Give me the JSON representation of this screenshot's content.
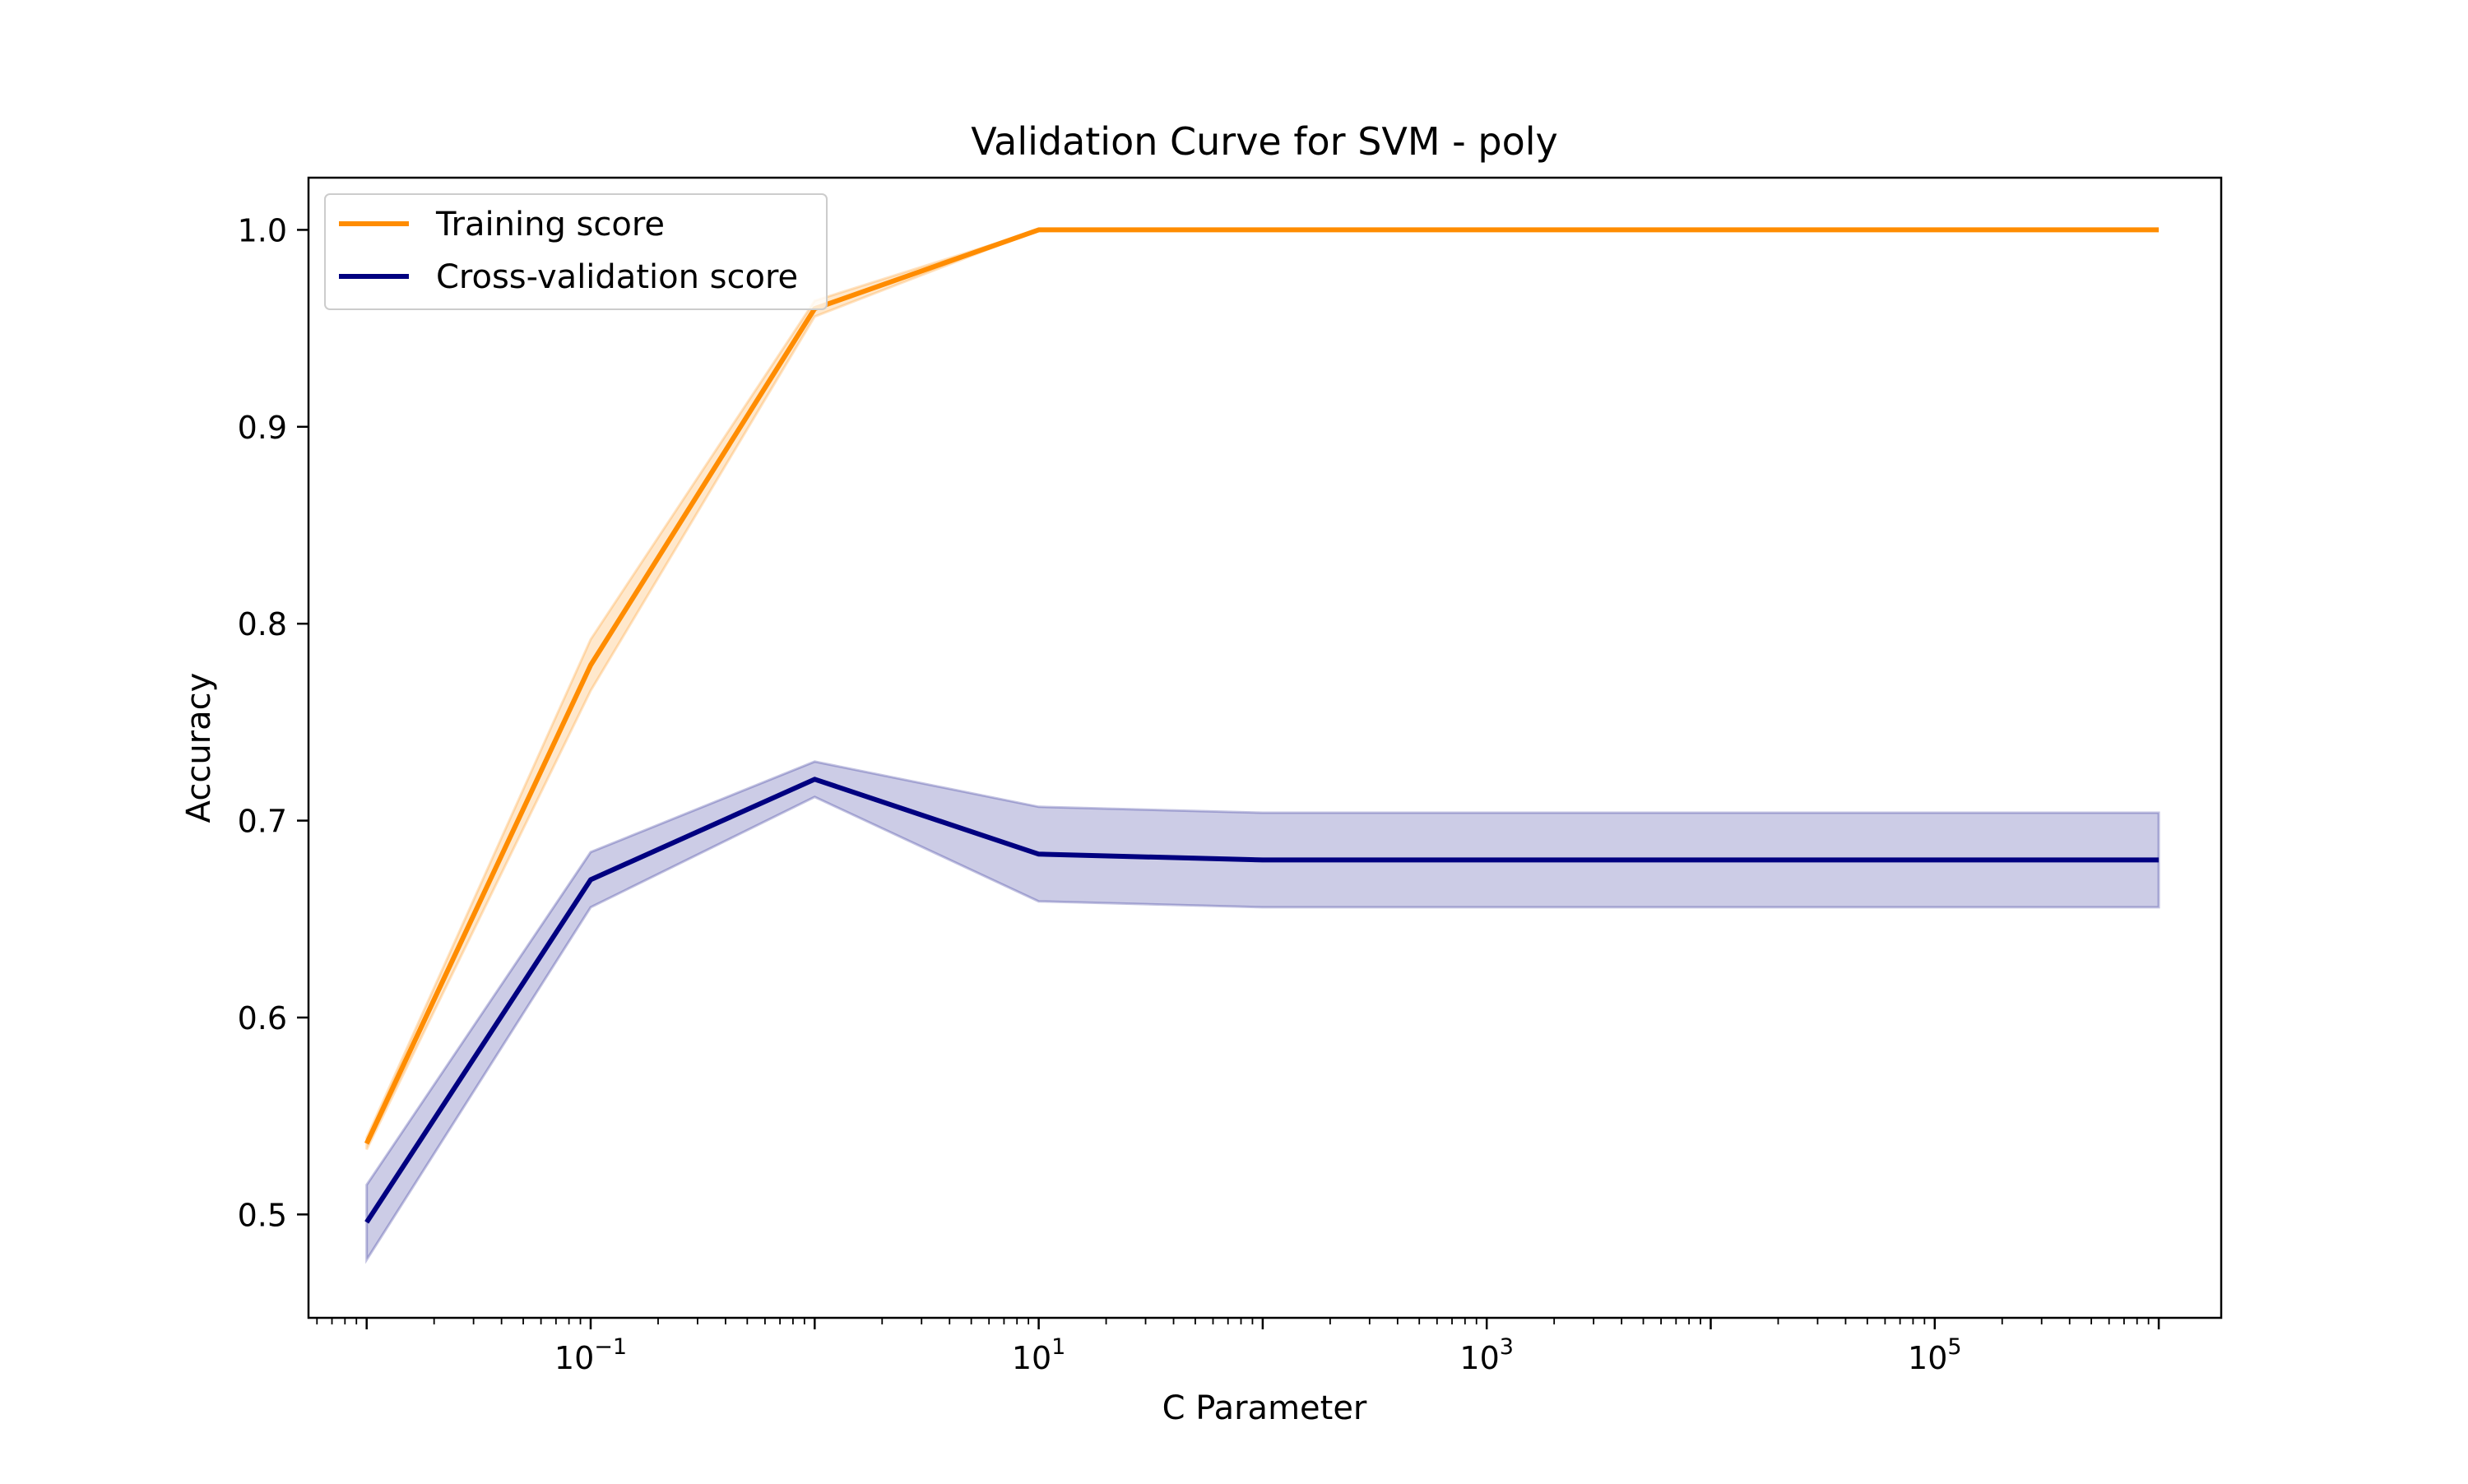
{
  "chart_data": {
    "type": "line",
    "title": "Validation Curve for SVM - poly",
    "xlabel": "C Parameter",
    "ylabel": "Accuracy",
    "xscale": "log",
    "xlim": [
      0.0055,
      1900000
    ],
    "ylim": [
      0.4475,
      1.0265
    ],
    "x": [
      0.01,
      0.1,
      1,
      10,
      100,
      1000,
      10000,
      100000,
      1000000
    ],
    "x_ticks": [
      {
        "value": 0.1,
        "base": "10",
        "exp": "−1"
      },
      {
        "value": 10,
        "base": "10",
        "exp": "1"
      },
      {
        "value": 1000,
        "base": "10",
        "exp": "3"
      },
      {
        "value": 100000,
        "base": "10",
        "exp": "5"
      }
    ],
    "y_ticks": [
      {
        "value": 0.5,
        "label": "0.5"
      },
      {
        "value": 0.6,
        "label": "0.6"
      },
      {
        "value": 0.7,
        "label": "0.7"
      },
      {
        "value": 0.8,
        "label": "0.8"
      },
      {
        "value": 0.9,
        "label": "0.9"
      },
      {
        "value": 1.0,
        "label": "1.0"
      }
    ],
    "grid": false,
    "legend_position": "upper-left",
    "series": [
      {
        "name": "Training score",
        "color": "#ff8c00",
        "band_opacity": 0.2,
        "values": [
          0.536,
          0.779,
          0.96,
          1.0,
          1.0,
          1.0,
          1.0,
          1.0,
          1.0
        ],
        "std": [
          0.003,
          0.013,
          0.004,
          0.0,
          0.0,
          0.0,
          0.0,
          0.0,
          0.0
        ]
      },
      {
        "name": "Cross-validation score",
        "color": "#000080",
        "band_opacity": 0.2,
        "values": [
          0.496,
          0.67,
          0.721,
          0.683,
          0.68,
          0.68,
          0.68,
          0.68,
          0.68
        ],
        "std": [
          0.019,
          0.014,
          0.009,
          0.024,
          0.024,
          0.024,
          0.024,
          0.024,
          0.024
        ]
      }
    ]
  }
}
